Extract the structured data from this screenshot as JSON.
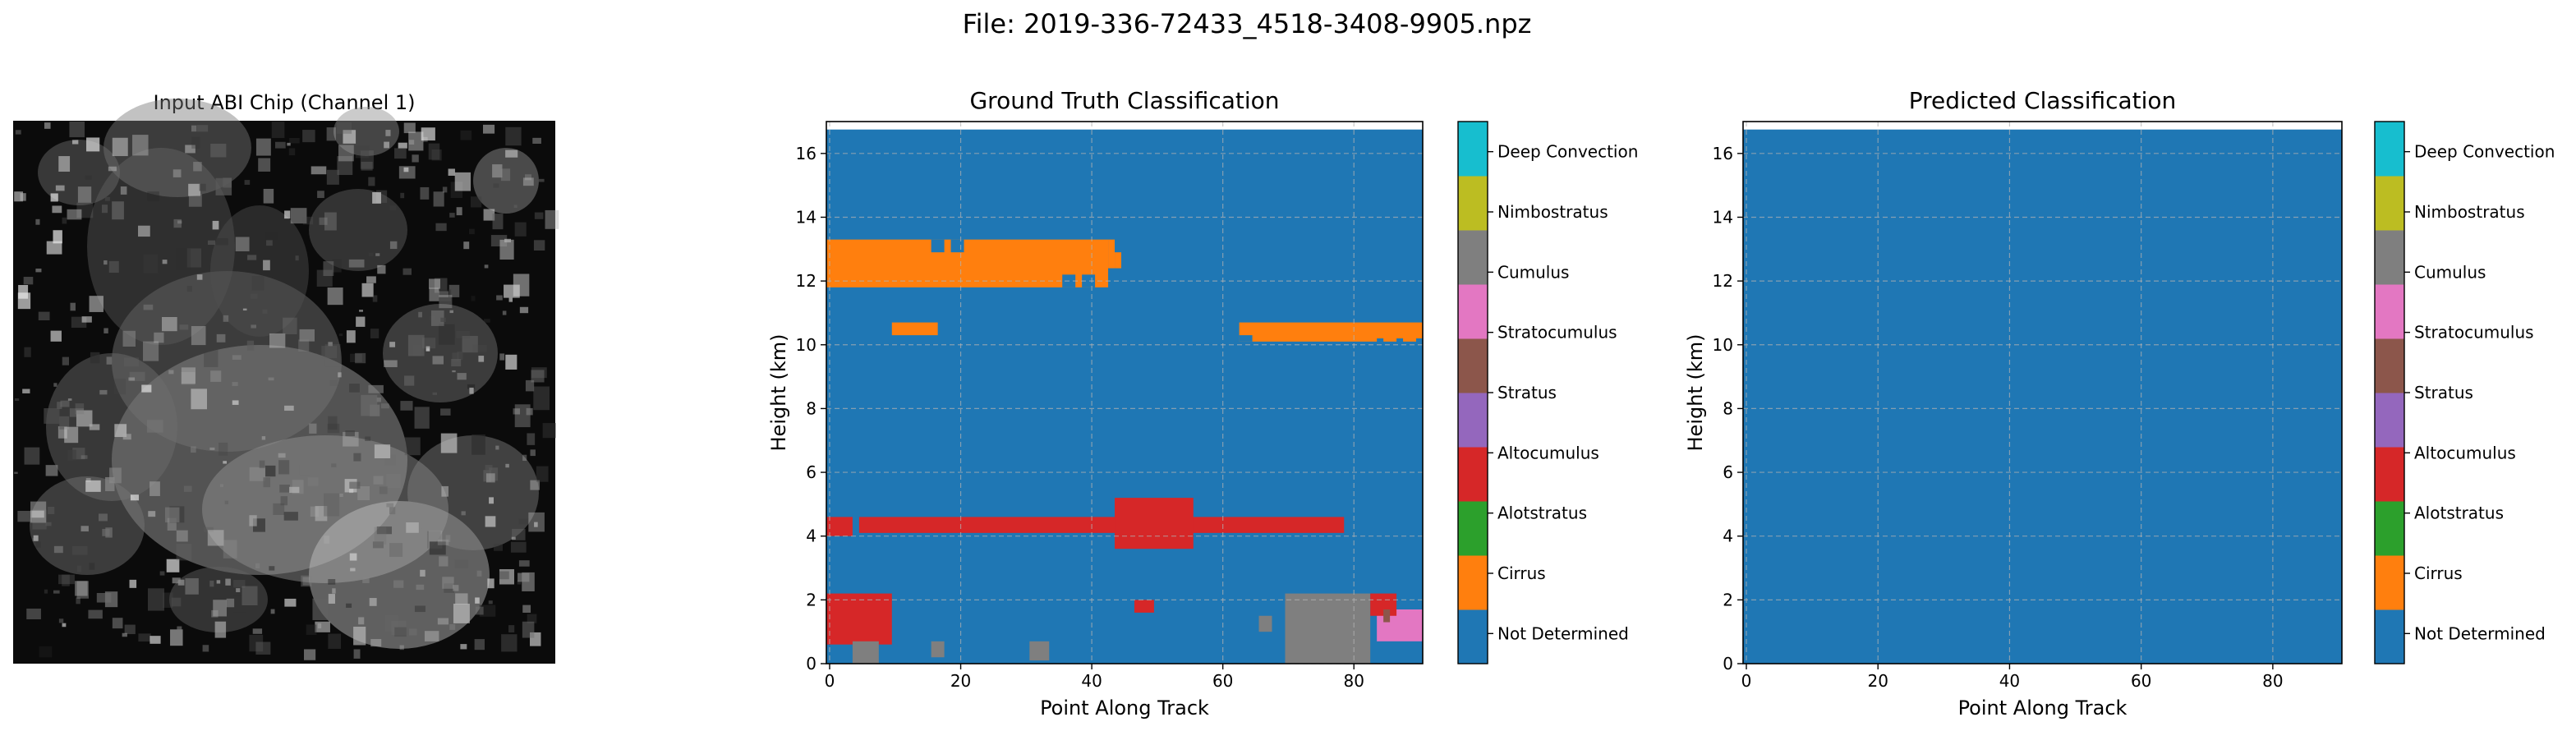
{
  "figure_title": "File: 2019-336-72433_4518-3408-9905.npz",
  "colors": {
    "not_determined": "#1f77b4",
    "cirrus": "#ff7f0e",
    "alotstratus": "#2ca02c",
    "altocumulus": "#d62728",
    "stratus_purple": "#9467bd",
    "stratus_brown": "#8c564b",
    "stratocumulus": "#e377c2",
    "cumulus": "#7f7f7f",
    "nimbostratus": "#bcbd22",
    "deep_convection": "#17becf"
  },
  "chart_data": [
    {
      "type": "image",
      "title": "Input ABI Chip (Channel 1)",
      "colormap": "gray",
      "axes": "off"
    },
    {
      "type": "heatmap",
      "title": "Ground Truth Classification",
      "xlabel": "Point Along Track",
      "ylabel": "Height (km)",
      "xlim": [
        -0.5,
        90.5
      ],
      "ylim": [
        0,
        17
      ],
      "xticks": [
        0,
        20,
        40,
        60,
        80
      ],
      "yticks": [
        0,
        2,
        4,
        6,
        8,
        10,
        12,
        14,
        16
      ],
      "data_top_km": 16.75,
      "grid": true,
      "background_class": "Not Determined",
      "regions": [
        {
          "class": "Cirrus",
          "x": [
            -0.5,
            42.5
          ],
          "y": [
            11.8,
            13.3
          ]
        },
        {
          "class": "Cirrus",
          "x": [
            42.5,
            43.5
          ],
          "y": [
            12.4,
            13.3
          ]
        },
        {
          "class": "Cirrus",
          "x": [
            43.5,
            44.5
          ],
          "y": [
            12.4,
            12.9
          ]
        },
        {
          "class": "Cirrus",
          "x": [
            9.5,
            16.5
          ],
          "y": [
            10.3,
            10.7
          ]
        },
        {
          "class": "Cirrus",
          "x": [
            62.5,
            90.5
          ],
          "y": [
            10.1,
            10.7
          ]
        },
        {
          "class": "Altocumulus",
          "x": [
            -0.5,
            3.5
          ],
          "y": [
            4.0,
            4.6
          ]
        },
        {
          "class": "Altocumulus",
          "x": [
            4.5,
            78.5
          ],
          "y": [
            4.1,
            4.6
          ]
        },
        {
          "class": "Altocumulus",
          "x": [
            43.5,
            55.5
          ],
          "y": [
            3.6,
            5.2
          ]
        },
        {
          "class": "Altocumulus",
          "x": [
            -0.5,
            9.5
          ],
          "y": [
            0.6,
            2.2
          ]
        },
        {
          "class": "Altocumulus",
          "x": [
            46.5,
            49.5
          ],
          "y": [
            1.6,
            2.0
          ]
        },
        {
          "class": "Cumulus",
          "x": [
            69.5,
            82.5
          ],
          "y": [
            0.0,
            2.2
          ]
        },
        {
          "class": "Cumulus",
          "x": [
            3.5,
            7.5
          ],
          "y": [
            0.0,
            0.7
          ]
        },
        {
          "class": "Cumulus",
          "x": [
            30.5,
            33.5
          ],
          "y": [
            0.1,
            0.7
          ]
        },
        {
          "class": "Cumulus",
          "x": [
            15.5,
            17.5
          ],
          "y": [
            0.2,
            0.7
          ]
        },
        {
          "class": "Cumulus",
          "x": [
            65.5,
            67.5
          ],
          "y": [
            1.0,
            1.5
          ]
        },
        {
          "class": "Stratocumulus",
          "x": [
            83.5,
            90.5
          ],
          "y": [
            0.7,
            1.7
          ]
        },
        {
          "class": "Altocumulus",
          "x": [
            82.5,
            86.5
          ],
          "y": [
            1.5,
            2.2
          ]
        },
        {
          "class": "Stratus",
          "x": [
            84.5,
            85.5
          ],
          "y": [
            1.3,
            1.7
          ]
        }
      ],
      "notches_background": [
        {
          "x": [
            15.5,
            17.5
          ],
          "y": [
            12.9,
            13.3
          ]
        },
        {
          "x": [
            18.5,
            20.5
          ],
          "y": [
            12.9,
            13.3
          ]
        },
        {
          "x": [
            35.5,
            37.5
          ],
          "y": [
            11.8,
            12.2
          ]
        },
        {
          "x": [
            38.5,
            40.5
          ],
          "y": [
            11.8,
            12.2
          ]
        },
        {
          "x": [
            62.5,
            64.5
          ],
          "y": [
            10.1,
            10.3
          ]
        },
        {
          "x": [
            83.5,
            84.5
          ],
          "y": [
            9.9,
            10.2
          ]
        },
        {
          "x": [
            86.5,
            87.5
          ],
          "y": [
            9.9,
            10.2
          ]
        },
        {
          "x": [
            89.5,
            90.5
          ],
          "y": [
            9.9,
            10.2
          ]
        }
      ],
      "colorbar": {
        "labels": [
          "Not Determined",
          "Cirrus",
          "Alotstratus",
          "Altocumulus",
          "Stratus",
          "Stratocumulus",
          "Cumulus",
          "Nimbostratus",
          "Deep Convection"
        ]
      }
    },
    {
      "type": "heatmap",
      "title": "Predicted Classification",
      "xlabel": "Point Along Track",
      "ylabel": "Height (km)",
      "xlim": [
        -0.5,
        90.5
      ],
      "ylim": [
        0,
        17
      ],
      "xticks": [
        0,
        20,
        40,
        60,
        80
      ],
      "yticks": [
        0,
        2,
        4,
        6,
        8,
        10,
        12,
        14,
        16
      ],
      "data_top_km": 16.75,
      "grid": true,
      "background_class": "Not Determined",
      "regions": [],
      "colorbar": {
        "labels": [
          "Not Determined",
          "Cirrus",
          "Alotstratus",
          "Altocumulus",
          "Stratus",
          "Stratocumulus",
          "Cumulus",
          "Nimbostratus",
          "Deep Convection"
        ]
      }
    }
  ]
}
